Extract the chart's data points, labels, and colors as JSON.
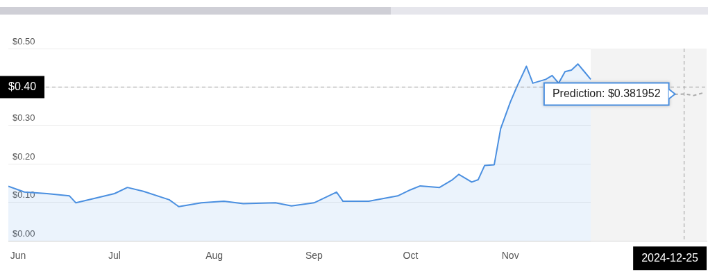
{
  "chart_data": {
    "type": "line",
    "series": [
      {
        "type": "area",
        "color": "#4a8fe0",
        "x": [
          "2024-05-29",
          "2024-06-03",
          "2024-06-10",
          "2024-06-17",
          "2024-06-19",
          "2024-06-24",
          "2024-07-01",
          "2024-07-05",
          "2024-07-10",
          "2024-07-18",
          "2024-07-21",
          "2024-07-28",
          "2024-08-04",
          "2024-08-10",
          "2024-08-20",
          "2024-08-25",
          "2024-09-01",
          "2024-09-08",
          "2024-09-10",
          "2024-09-18",
          "2024-09-27",
          "2024-10-01",
          "2024-10-04",
          "2024-10-10",
          "2024-10-14",
          "2024-10-16",
          "2024-10-20",
          "2024-10-22",
          "2024-10-24",
          "2024-10-27",
          "2024-10-29",
          "2024-11-01",
          "2024-11-03",
          "2024-11-06",
          "2024-11-08",
          "2024-11-12",
          "2024-11-14",
          "2024-11-16",
          "2024-11-18",
          "2024-11-20",
          "2024-11-22",
          "2024-11-24",
          "2024-11-26"
        ],
        "values": [
          0.142,
          0.127,
          0.123,
          0.117,
          0.099,
          0.109,
          0.123,
          0.139,
          0.129,
          0.107,
          0.089,
          0.099,
          0.103,
          0.097,
          0.099,
          0.091,
          0.099,
          0.127,
          0.103,
          0.103,
          0.117,
          0.133,
          0.143,
          0.139,
          0.159,
          0.173,
          0.153,
          0.159,
          0.196,
          0.198,
          0.292,
          0.361,
          0.4,
          0.454,
          0.41,
          0.42,
          0.43,
          0.41,
          0.44,
          0.444,
          0.46,
          0.44,
          0.42
        ]
      },
      {
        "type": "line",
        "line_style": "dashed",
        "color": "#aaaaaa",
        "x": [
          "2024-12-22",
          "2024-12-25",
          "2024-12-28",
          "2024-12-31"
        ],
        "values": [
          0.381,
          0.381952,
          0.378,
          0.385
        ]
      }
    ],
    "ylim": [
      0,
      0.5
    ],
    "yticks": [
      {
        "value": 0,
        "label": "$0.00"
      },
      {
        "value": 0.1,
        "label": "$0.10"
      },
      {
        "value": 0.2,
        "label": "$0.20"
      },
      {
        "value": 0.3,
        "label": "$0.30"
      },
      {
        "value": 0.4,
        "label": null
      },
      {
        "value": 0.5,
        "label": "$0.50"
      }
    ],
    "xlim": [
      "2024-05-29",
      "2025-01-01"
    ],
    "xticks": [
      {
        "value": "2024-06-01",
        "label": "Jun"
      },
      {
        "value": "2024-07-01",
        "label": "Jul"
      },
      {
        "value": "2024-08-01",
        "label": "Aug"
      },
      {
        "value": "2024-09-01",
        "label": "Sep"
      },
      {
        "value": "2024-10-01",
        "label": "Oct"
      },
      {
        "value": "2024-11-01",
        "label": "Nov"
      }
    ],
    "grid": "y",
    "legend": false,
    "marker": "none",
    "bands": [
      {
        "axis": "x",
        "from": "2024-11-26",
        "to": "2025-01-01",
        "color": "#f3f3f3"
      }
    ],
    "ref_lines": [
      {
        "axis": "y",
        "value": 0.4,
        "label": "$0.40",
        "line_style": "dashed",
        "color": "#999999"
      },
      {
        "axis": "x",
        "value": "2024-12-25",
        "label": "2024-12-25",
        "line_style": "dashed",
        "color": "#999999"
      }
    ],
    "annotations": [
      {
        "text": "Prediction: $0.381952",
        "x": "2024-12-25",
        "y": 0.381952
      }
    ]
  }
}
